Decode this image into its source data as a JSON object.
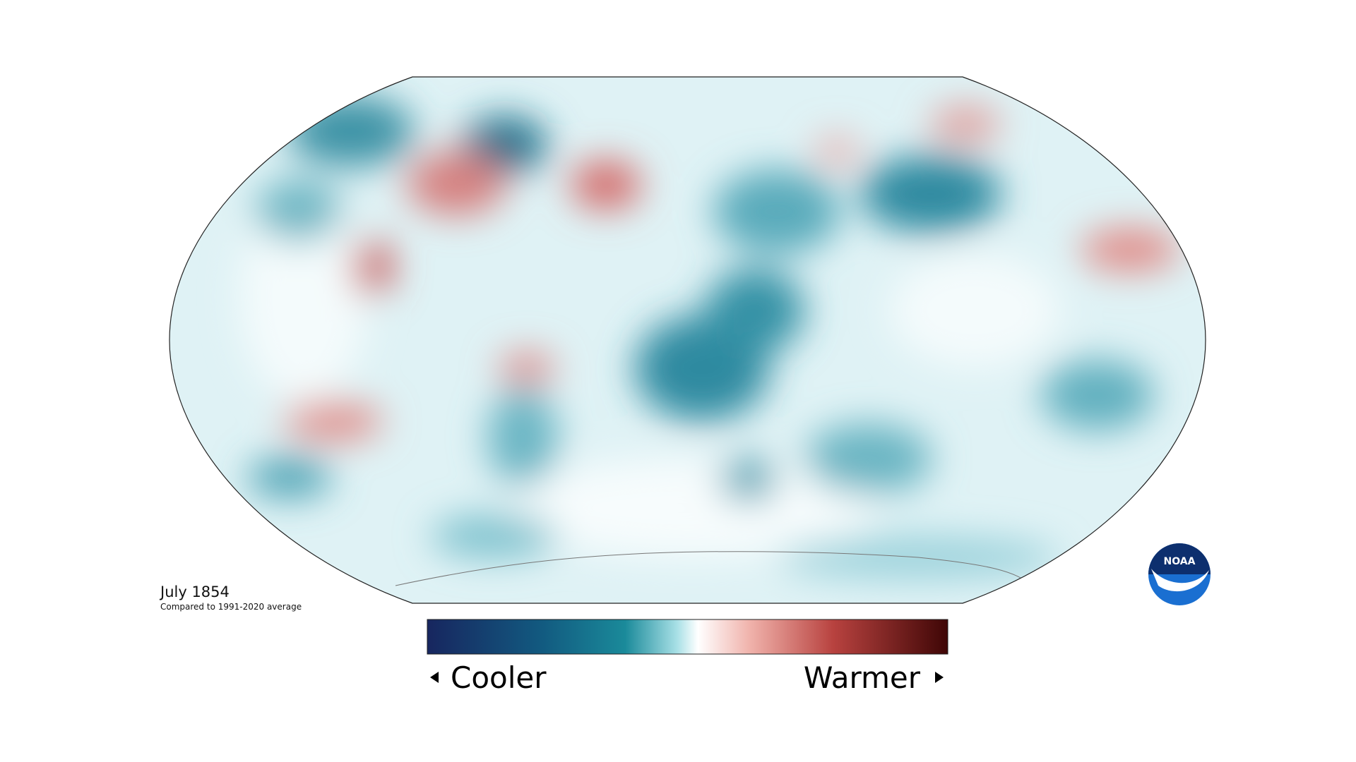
{
  "map": {
    "title": "July 1854",
    "subtitle": "Compared to 1991-2020 average"
  },
  "legend": {
    "low": "Cooler",
    "high": "Warmer"
  },
  "logo": {
    "text": "NOAA"
  }
}
